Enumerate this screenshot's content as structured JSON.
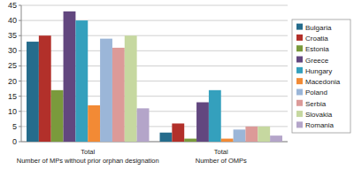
{
  "chart_data": {
    "type": "bar",
    "categories": [
      "Total\nNumber of MPs without prior orphan designation",
      "Total\nNumber of OMPs"
    ],
    "series": [
      {
        "name": "Bulgaria",
        "color": "#256c8c",
        "values": [
          33,
          3
        ]
      },
      {
        "name": "Croatia",
        "color": "#b2302a",
        "values": [
          35,
          6
        ]
      },
      {
        "name": "Estonia",
        "color": "#7a9a3c",
        "values": [
          17,
          1
        ]
      },
      {
        "name": "Greece",
        "color": "#62477f",
        "values": [
          43,
          13
        ]
      },
      {
        "name": "Hungary",
        "color": "#34a0bd",
        "values": [
          40,
          17
        ]
      },
      {
        "name": "Macedonia",
        "color": "#f28a35",
        "values": [
          12,
          1
        ]
      },
      {
        "name": "Poland",
        "color": "#9bb6d8",
        "values": [
          34,
          4
        ]
      },
      {
        "name": "Serbia",
        "color": "#dc9a98",
        "values": [
          31,
          5
        ]
      },
      {
        "name": "Slovakia",
        "color": "#c6d8a0",
        "values": [
          35,
          5
        ]
      },
      {
        "name": "Romania",
        "color": "#b4a5c9",
        "values": [
          11,
          2
        ]
      }
    ],
    "ylim": [
      0,
      45
    ],
    "yticks": [
      0,
      5,
      10,
      15,
      20,
      25,
      30,
      35,
      40,
      45
    ],
    "grid": true,
    "legend": "right"
  }
}
